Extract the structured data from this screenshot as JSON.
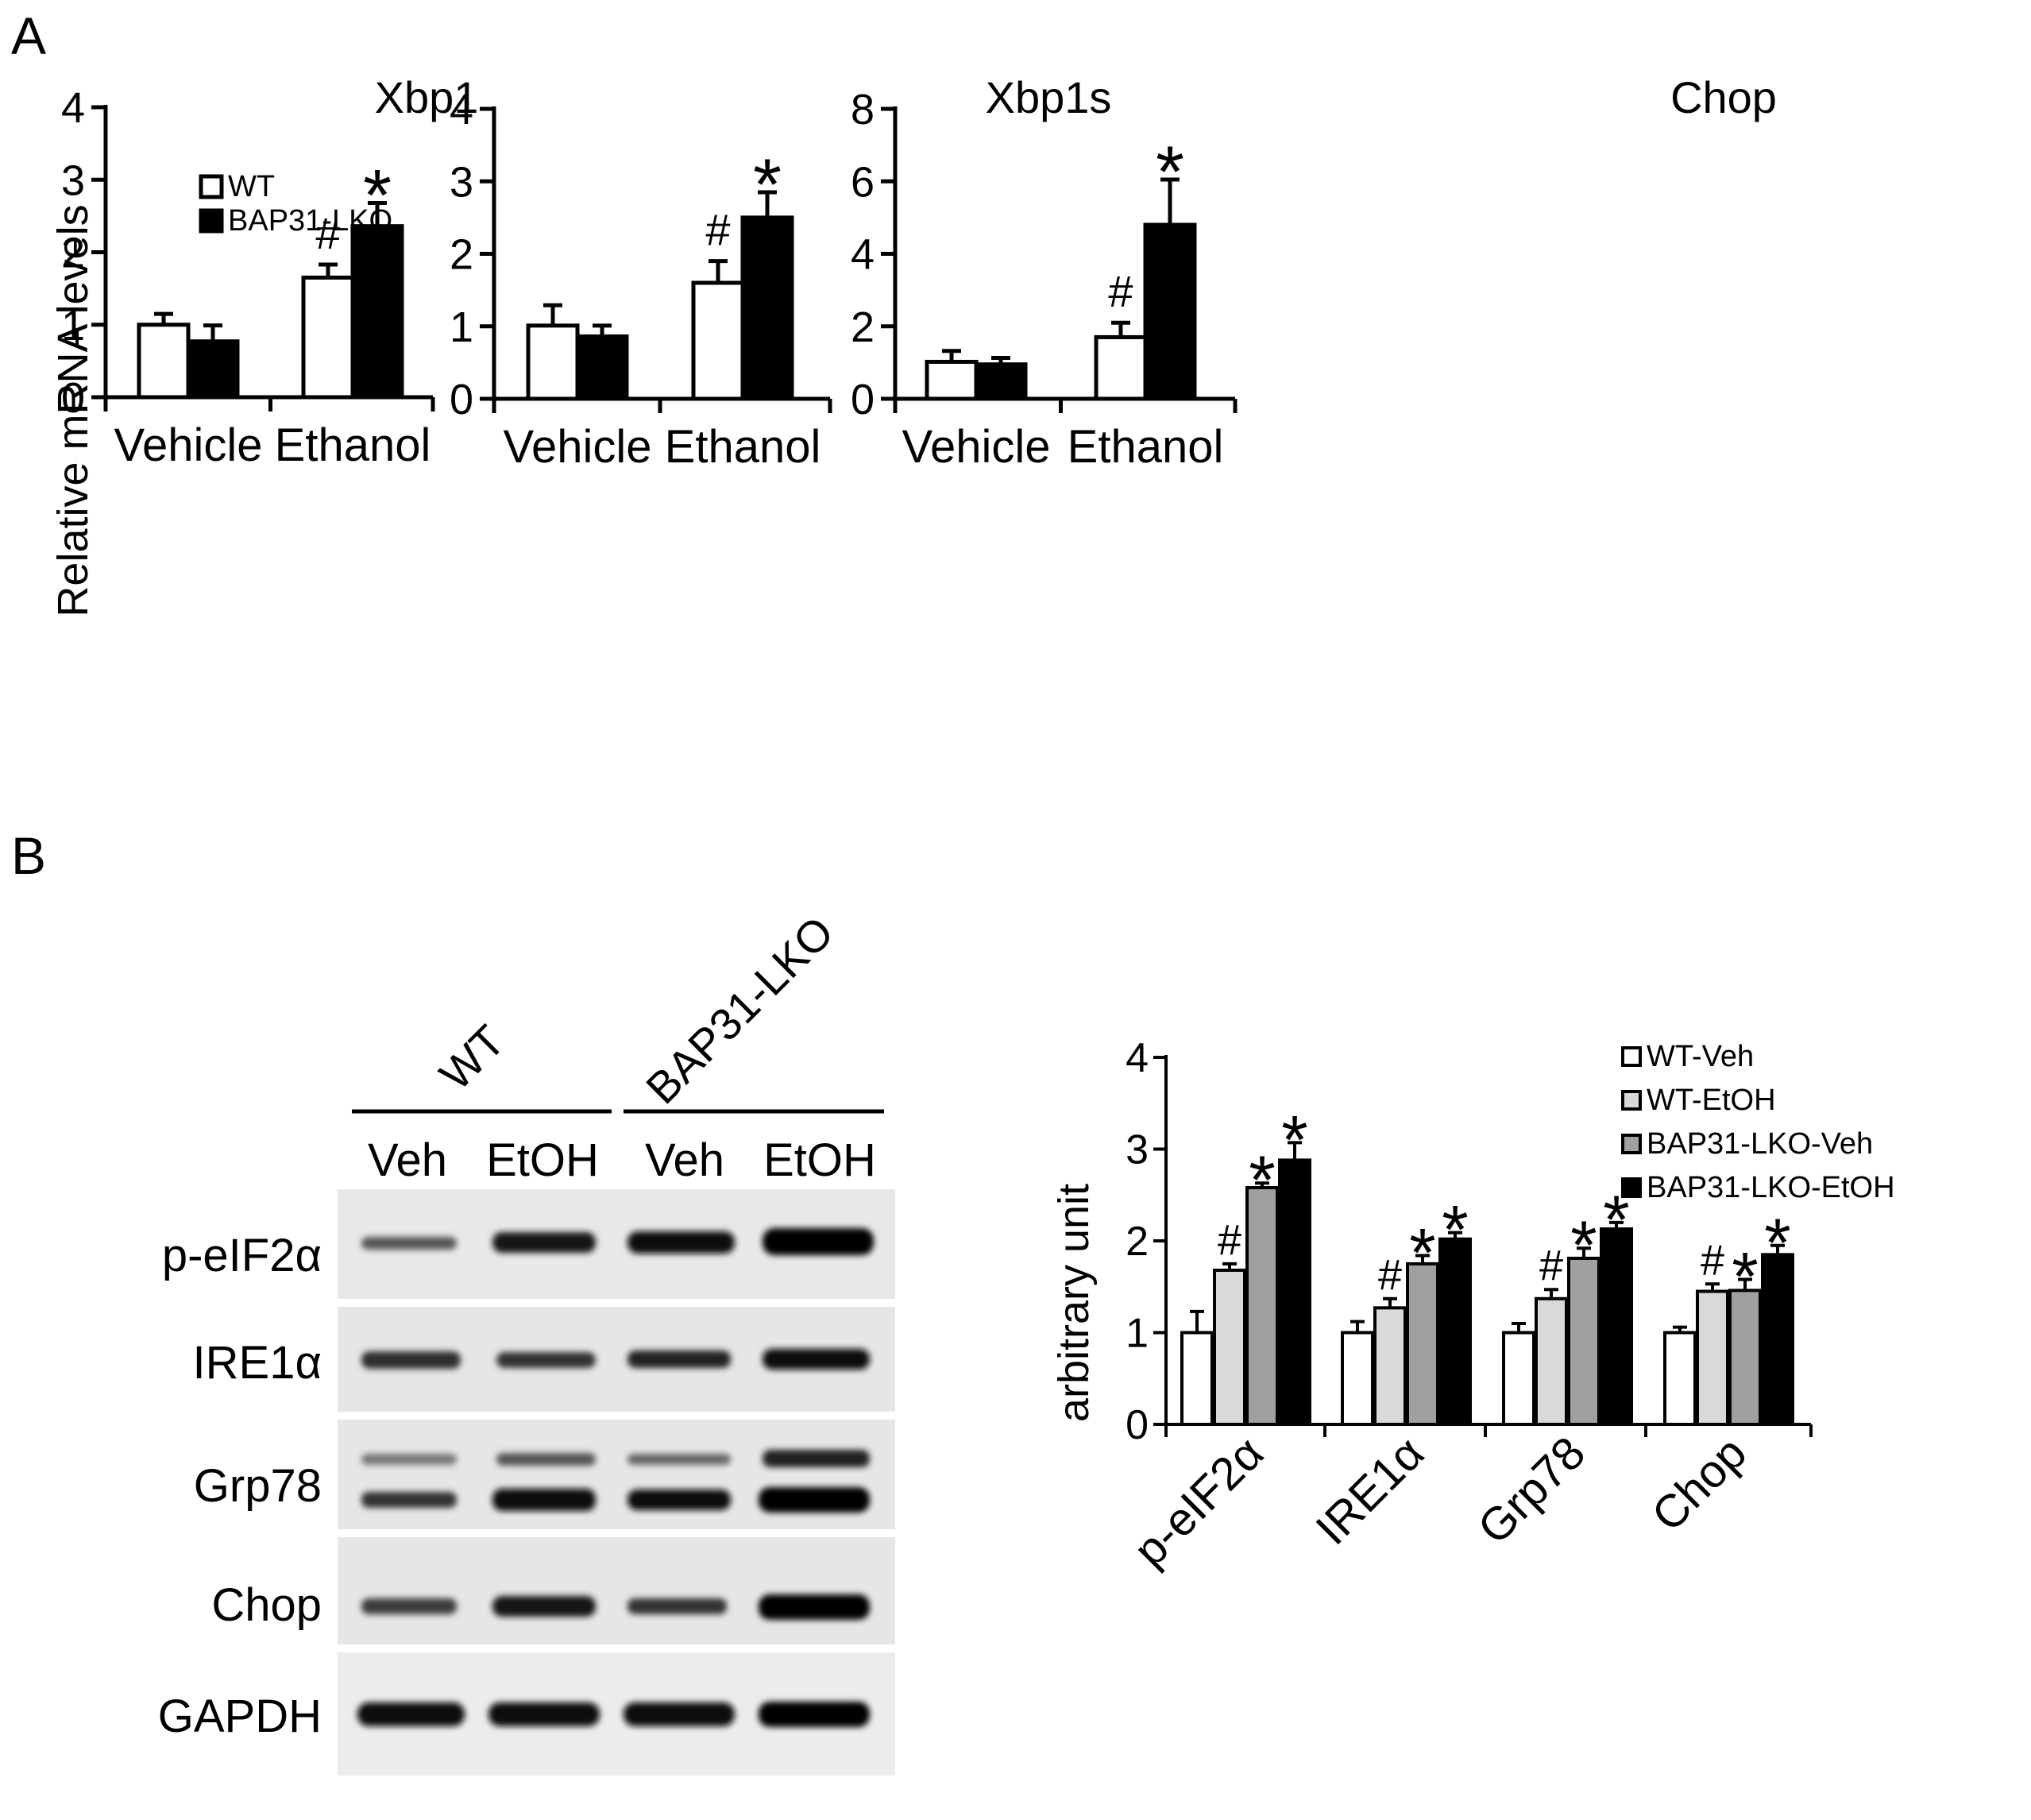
{
  "panels": {
    "a": {
      "label": "A",
      "charts": [
        {
          "id": "xbp1",
          "type": "bar",
          "title": "Xbp1",
          "ylabel": "Relative mRNA levels",
          "ylim": [
            0,
            4
          ],
          "yticks": [
            0,
            1,
            2,
            3,
            4
          ],
          "categories": [
            "Vehicle",
            "Ethanol"
          ],
          "legend": {
            "placement": "top-left",
            "entries": [
              "WT",
              "BAP31-LKO"
            ]
          },
          "series": [
            {
              "name": "WT",
              "color": "#ffffff",
              "values": [
                1.0,
                1.65
              ],
              "errors": [
                0.15,
                0.18
              ],
              "annotations": [
                "",
                "#"
              ]
            },
            {
              "name": "BAP31-LKO",
              "color": "#000000",
              "values": [
                0.77,
                2.36
              ],
              "errors": [
                0.22,
                0.32
              ],
              "annotations": [
                "",
                "*"
              ]
            }
          ]
        },
        {
          "id": "xbp1s",
          "type": "bar",
          "title": "Xbp1s",
          "ylabel": "",
          "ylim": [
            0,
            4
          ],
          "yticks": [
            0,
            1,
            2,
            3,
            4
          ],
          "categories": [
            "Vehicle",
            "Ethanol"
          ],
          "series": [
            {
              "name": "WT",
              "color": "#ffffff",
              "values": [
                1.01,
                1.6
              ],
              "errors": [
                0.28,
                0.3
              ],
              "annotations": [
                "",
                "#"
              ]
            },
            {
              "name": "BAP31-LKO",
              "color": "#000000",
              "values": [
                0.86,
                2.5
              ],
              "errors": [
                0.15,
                0.35
              ],
              "annotations": [
                "",
                "*"
              ]
            }
          ]
        },
        {
          "id": "chop",
          "type": "bar",
          "title": "Chop",
          "ylabel": "",
          "ylim": [
            0,
            8
          ],
          "yticks": [
            0,
            2,
            4,
            6,
            8
          ],
          "categories": [
            "Vehicle",
            "Ethanol"
          ],
          "series": [
            {
              "name": "WT",
              "color": "#ffffff",
              "values": [
                1.02,
                1.7
              ],
              "errors": [
                0.3,
                0.4
              ],
              "annotations": [
                "",
                "#"
              ]
            },
            {
              "name": "BAP31-LKO",
              "color": "#000000",
              "values": [
                0.95,
                4.8
              ],
              "errors": [
                0.18,
                1.25
              ],
              "annotations": [
                "",
                "*"
              ]
            }
          ]
        }
      ]
    },
    "b": {
      "label": "B",
      "blot": {
        "group_labels": [
          "WT",
          "BAP31-LKO"
        ],
        "lane_labels": [
          "Veh",
          "EtOH",
          "Veh",
          "EtOH"
        ],
        "rows": [
          {
            "label": "p-eIF2α"
          },
          {
            "label": "IRE1α"
          },
          {
            "label": "Grp78"
          },
          {
            "label": "Chop"
          },
          {
            "label": "GAPDH"
          }
        ]
      },
      "chart": {
        "type": "bar",
        "ylabel": "arbitrary unit",
        "ylim": [
          0,
          4
        ],
        "yticks": [
          0,
          1,
          2,
          3,
          4
        ],
        "categories": [
          "p-eIF2α",
          "IRE1α",
          "Grp78",
          "Chop"
        ],
        "legend": {
          "placement": "top-right"
        },
        "series": [
          {
            "name": "WT-Veh",
            "color": "#ffffff",
            "values": [
              1.0,
              1.0,
              1.0,
              1.0
            ],
            "errors": [
              0.23,
              0.12,
              0.1,
              0.06
            ],
            "annotations": [
              "",
              "",
              "",
              ""
            ]
          },
          {
            "name": "WT-EtOH",
            "color": "#d9d9d9",
            "values": [
              1.68,
              1.27,
              1.37,
              1.45
            ],
            "errors": [
              0.07,
              0.1,
              0.1,
              0.08
            ],
            "annotations": [
              "#",
              "#",
              "#",
              "#"
            ]
          },
          {
            "name": "BAP31-LKO-Veh",
            "color": "#a0a0a0",
            "values": [
              2.58,
              1.75,
              1.81,
              1.46
            ],
            "errors": [
              0.05,
              0.09,
              0.11,
              0.12
            ],
            "annotations": [
              "*",
              "*",
              "*",
              "*"
            ]
          },
          {
            "name": "BAP31-LKO-EtOH",
            "color": "#000000",
            "values": [
              2.88,
              2.02,
              2.13,
              1.85
            ],
            "errors": [
              0.19,
              0.07,
              0.07,
              0.1
            ],
            "annotations": [
              "*",
              "*",
              "*",
              "*"
            ]
          }
        ]
      }
    }
  }
}
